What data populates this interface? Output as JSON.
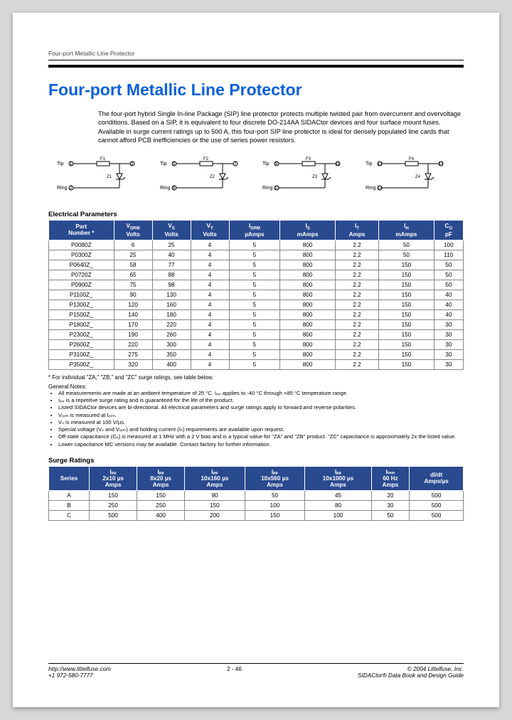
{
  "runningHead": "Four-port Metallic Line Protector",
  "title": "Four-port Metallic Line Protector",
  "intro": "The four-port hybrid Single In-line Package (SIP) line protector protects multiple twisted pair from overcurrent and overvoltage conditions. Based on a SIP, it is equivalent to four discrete DO-214AA SIDACtor devices and four surface mount fuses. Available in surge current ratings up to 500 A, this four-port SIP line protector is ideal for densely populated line cards that cannot afford PCB inefficiencies or the use of series power resistors.",
  "diagLabels": {
    "tip": "Tip",
    "ring": "Ring",
    "f": [
      "F1",
      "F2",
      "F3",
      "F4"
    ],
    "z": [
      "Z1",
      "Z2",
      "Z3",
      "Z4"
    ],
    "pins": [
      "①",
      "③",
      "⑤",
      "⑦",
      "⑨",
      "⑪",
      "⑬",
      "⑮",
      "②",
      "④",
      "⑥",
      "⑧"
    ]
  },
  "elecHead": "Electrical Parameters",
  "elecCols": [
    {
      "l1": "Part",
      "l2": "Number *"
    },
    {
      "l1": "V",
      "sub": "DRM",
      "l2": "Volts"
    },
    {
      "l1": "V",
      "sub": "S",
      "l2": "Volts"
    },
    {
      "l1": "V",
      "sub": "T",
      "l2": "Volts"
    },
    {
      "l1": "I",
      "sub": "DRM",
      "l2": "µAmps"
    },
    {
      "l1": "I",
      "sub": "S",
      "l2": "mAmps"
    },
    {
      "l1": "I",
      "sub": "T",
      "l2": "Amps"
    },
    {
      "l1": "I",
      "sub": "H",
      "l2": "mAmps"
    },
    {
      "l1": "C",
      "sub": "O",
      "l2": "pF"
    }
  ],
  "elecRows": [
    [
      "P0080Z",
      "6",
      "25",
      "4",
      "5",
      "800",
      "2.2",
      "50",
      "100"
    ],
    [
      "P0300Z",
      "25",
      "40",
      "4",
      "5",
      "800",
      "2.2",
      "50",
      "110"
    ],
    [
      "P0640Z_",
      "58",
      "77",
      "4",
      "5",
      "800",
      "2.2",
      "150",
      "50"
    ],
    [
      "P0720Z",
      "65",
      "88",
      "4",
      "5",
      "800",
      "2.2",
      "150",
      "50"
    ],
    [
      "P0900Z",
      "75",
      "98",
      "4",
      "5",
      "800",
      "2.2",
      "150",
      "50"
    ],
    [
      "P1100Z_",
      "90",
      "130",
      "4",
      "5",
      "800",
      "2.2",
      "150",
      "40"
    ],
    [
      "P1300Z_",
      "120",
      "160",
      "4",
      "5",
      "800",
      "2.2",
      "150",
      "40"
    ],
    [
      "P1500Z_",
      "140",
      "180",
      "4",
      "5",
      "800",
      "2.2",
      "150",
      "40"
    ],
    [
      "P1800Z_",
      "170",
      "220",
      "4",
      "5",
      "800",
      "2.2",
      "150",
      "30"
    ],
    [
      "P2300Z_",
      "190",
      "260",
      "4",
      "5",
      "800",
      "2.2",
      "150",
      "30"
    ],
    [
      "P2600Z_",
      "220",
      "300",
      "4",
      "5",
      "800",
      "2.2",
      "150",
      "30"
    ],
    [
      "P3100Z_",
      "275",
      "350",
      "4",
      "5",
      "800",
      "2.2",
      "150",
      "30"
    ],
    [
      "P3500Z_",
      "320",
      "400",
      "4",
      "5",
      "800",
      "2.2",
      "150",
      "30"
    ]
  ],
  "footnote": "* For individual \"ZA,\" \"ZB,\" and \"ZC\" surge ratings, see table below.",
  "notesHead": "General Notes:",
  "notes": [
    "All measurements are made at an ambient temperature of 25 °C. Iₚₚ applies to -40 °C through +85 °C temperature range.",
    "Iₚₚ is a repetitive surge rating and is guaranteed for the life of the product.",
    "Listed SIDACtor devices are bi-directional. All electrical parameters and surge ratings apply to forward and reverse polarities.",
    "Vₒᵣₘ is measured at Iₒᵣₘ.",
    "Vₛ is measured at 100 V/µs.",
    "Special voltage (Vₛ and Vₒᵣₘ) and holding current (Iₕ) requirements are available upon request.",
    "Off-state capacitance (Cₒ) is measured at 1 MHz with a 2 V bias and is a typical value for \"ZA\" and \"ZB\" product. \"ZC\" capacitance is approximately 2x the listed value.",
    "Lower capacitance MC versions may be available. Contact factory for further information."
  ],
  "surgeHead": "Surge Ratings",
  "surgeCols": [
    {
      "l1": "",
      "l2": "Series"
    },
    {
      "l1": "Iₚₚ",
      "l2": "2x10 µs",
      "l3": "Amps"
    },
    {
      "l1": "Iₚₚ",
      "l2": "8x20 µs",
      "l3": "Amps"
    },
    {
      "l1": "Iₚₚ",
      "l2": "10x160 µs",
      "l3": "Amps"
    },
    {
      "l1": "Iₚₚ",
      "l2": "10x560 µs",
      "l3": "Amps"
    },
    {
      "l1": "Iₚₚ",
      "l2": "10x1000 µs",
      "l3": "Amps"
    },
    {
      "l1": "Iₜₛₘ",
      "l2": "60 Hz",
      "l3": "Amps"
    },
    {
      "l1": "",
      "l2": "di/dt",
      "l3": "Amps/µs"
    }
  ],
  "surgeRows": [
    [
      "A",
      "150",
      "150",
      "90",
      "50",
      "45",
      "20",
      "500"
    ],
    [
      "B",
      "250",
      "250",
      "150",
      "100",
      "80",
      "30",
      "500"
    ],
    [
      "C",
      "500",
      "400",
      "200",
      "150",
      "100",
      "50",
      "500"
    ]
  ],
  "footer": {
    "url": "http://www.littelfuse.com",
    "phone": "+1 972-580-7777",
    "pagenum": "2 - 46",
    "copyright": "© 2004 Littelfuse, Inc.",
    "book": "SIDACtor® Data Book and Design Guide"
  },
  "style": {
    "headerBg": "#2a4a8f",
    "titleColor": "#0a5fd6"
  }
}
